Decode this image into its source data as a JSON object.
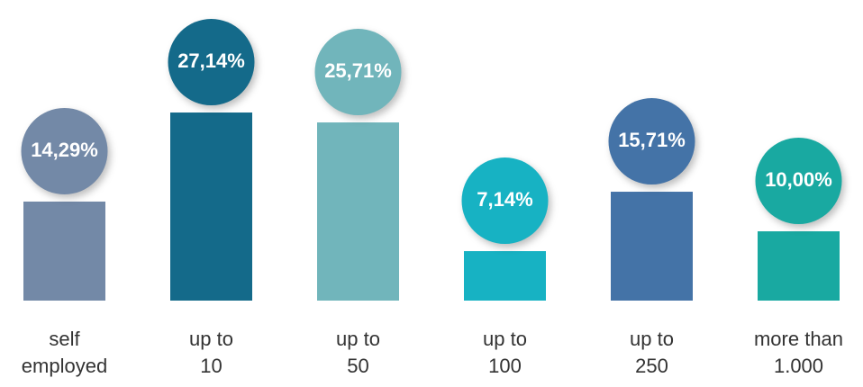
{
  "chart_data": {
    "type": "bar",
    "categories": [
      "self\nemployed",
      "up to\n10",
      "up to\n50",
      "up to\n100",
      "up to\n250",
      "more than\n1.000"
    ],
    "values": [
      14.29,
      27.14,
      25.71,
      7.14,
      15.71,
      10.0
    ],
    "value_labels": [
      "14,29%",
      "27,14%",
      "25,71%",
      "7,14%",
      "15,71%",
      "10,00%"
    ],
    "colors": [
      "#7389a7",
      "#146a8a",
      "#71b5bb",
      "#17b2c3",
      "#4473a7",
      "#19a9a1"
    ]
  }
}
